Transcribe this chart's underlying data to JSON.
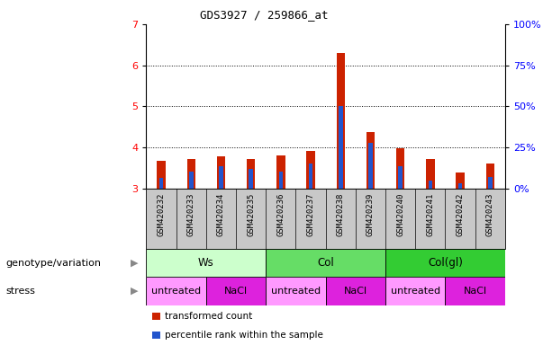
{
  "title": "GDS3927 / 259866_at",
  "samples": [
    "GSM420232",
    "GSM420233",
    "GSM420234",
    "GSM420235",
    "GSM420236",
    "GSM420237",
    "GSM420238",
    "GSM420239",
    "GSM420240",
    "GSM420241",
    "GSM420242",
    "GSM420243"
  ],
  "red_values": [
    3.68,
    3.72,
    3.78,
    3.72,
    3.8,
    3.92,
    6.3,
    4.38,
    3.98,
    3.72,
    3.38,
    3.6
  ],
  "blue_values": [
    3.25,
    3.4,
    3.55,
    3.48,
    3.42,
    3.6,
    5.0,
    4.12,
    3.55,
    3.2,
    3.12,
    3.28
  ],
  "ylim": [
    3.0,
    7.0
  ],
  "yticks_left": [
    3,
    4,
    5,
    6,
    7
  ],
  "yticks_right": [
    0,
    25,
    50,
    75,
    100
  ],
  "yticks_right_vals": [
    3.0,
    4.0,
    5.0,
    6.0,
    7.0
  ],
  "bar_width": 0.28,
  "blue_bar_width": 0.14,
  "red_color": "#cc2200",
  "blue_color": "#2255cc",
  "bg_gray": "#c8c8c8",
  "genotype_groups": [
    {
      "label": "Ws",
      "start": 0,
      "end": 3,
      "color": "#ccffcc"
    },
    {
      "label": "Col",
      "start": 4,
      "end": 7,
      "color": "#66dd66"
    },
    {
      "label": "Col(gl)",
      "start": 8,
      "end": 11,
      "color": "#33cc33"
    }
  ],
  "stress_groups": [
    {
      "label": "untreated",
      "start": 0,
      "end": 1,
      "color": "#ff99ff"
    },
    {
      "label": "NaCl",
      "start": 2,
      "end": 3,
      "color": "#dd22dd"
    },
    {
      "label": "untreated",
      "start": 4,
      "end": 5,
      "color": "#ff99ff"
    },
    {
      "label": "NaCl",
      "start": 6,
      "end": 7,
      "color": "#dd22dd"
    },
    {
      "label": "untreated",
      "start": 8,
      "end": 9,
      "color": "#ff99ff"
    },
    {
      "label": "NaCl",
      "start": 10,
      "end": 11,
      "color": "#dd22dd"
    }
  ],
  "legend_items": [
    {
      "label": "transformed count",
      "color": "#cc2200"
    },
    {
      "label": "percentile rank within the sample",
      "color": "#2255cc"
    }
  ],
  "left_labels": [
    {
      "text": "genotype/variation",
      "row": "geno"
    },
    {
      "text": "stress",
      "row": "stress"
    }
  ]
}
